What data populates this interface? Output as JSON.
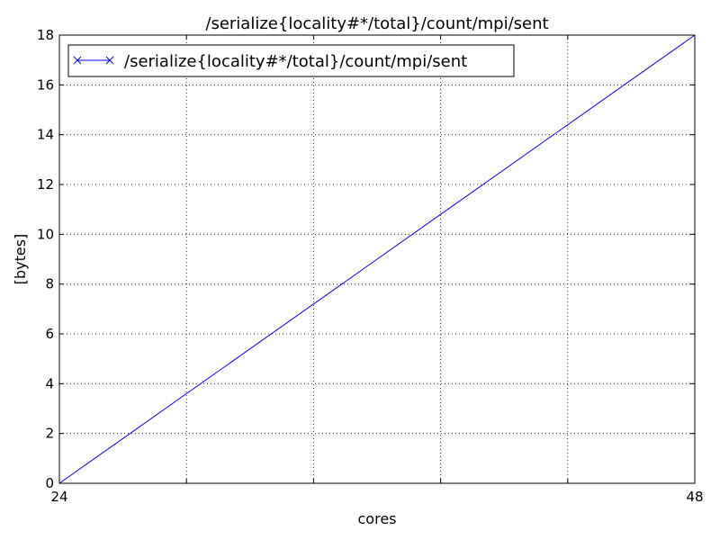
{
  "chart_data": {
    "type": "line",
    "title": "/serialize{locality#*/total}/count/mpi/sent",
    "xlabel": "cores",
    "ylabel": "[bytes]",
    "xlim": [
      24,
      48
    ],
    "ylim": [
      0,
      18
    ],
    "x_ticks": [
      24,
      48
    ],
    "x_grid": [
      28.8,
      33.6,
      38.4,
      43.2
    ],
    "y_ticks": [
      0,
      2,
      4,
      6,
      8,
      10,
      12,
      14,
      16,
      18
    ],
    "grid": true,
    "legend_position": "top-left",
    "series": [
      {
        "name": "/serialize{locality#*/total}/count/mpi/sent",
        "color": "#0000ff",
        "marker": "x",
        "x": [
          24,
          48
        ],
        "values": [
          0,
          18
        ]
      }
    ]
  }
}
